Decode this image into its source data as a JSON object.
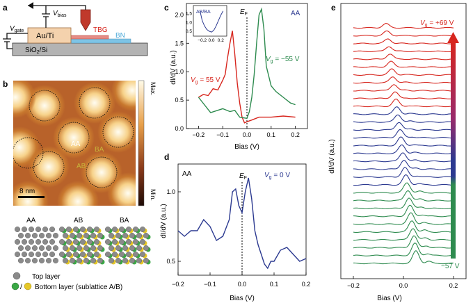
{
  "panels": {
    "a": {
      "letter": "a",
      "v_gate": "V",
      "v_gate_sub": "gate",
      "v_bias": "V",
      "v_bias_sub": "bias",
      "electrode": "Au/Ti",
      "tbg": "TBG",
      "bn": "BN",
      "substrate": "SiO",
      "substrate_sub": "2",
      "substrate_tail": "/Si"
    },
    "b": {
      "letter": "b",
      "colorbar_max": "Max.",
      "colorbar_min": "Min.",
      "scale": "8 nm",
      "label_aa": "AA",
      "label_ab": "AB",
      "label_ba": "BA",
      "models": [
        "AA",
        "AB",
        "BA"
      ],
      "legend_top": "Top layer",
      "legend_bottom": "Bottom layer (sublattice A/B)",
      "legend_slash": "/"
    },
    "c": {
      "letter": "c",
      "ylabel": "dI/dV (a.u.)",
      "xlabel": "Bias (V)",
      "ef": "E",
      "ef_sub": "F",
      "tag": "AA",
      "vg_pos": "V",
      "vg_pos_sub": "g",
      "vg_pos_val": " = 55 V",
      "vg_neg": "V",
      "vg_neg_sub": "g",
      "vg_neg_val": " = −55 V",
      "xticks": [
        "−0.2",
        "−0.1",
        "0.0",
        "0.1",
        "0.2"
      ],
      "yticks": [
        "0.0",
        "0.5",
        "1.0",
        "1.5",
        "2.0"
      ],
      "inset_tag": "AB/BA",
      "inset_xticks": [
        "−0.2",
        "0.0",
        "0.2"
      ],
      "inset_yticks": [
        "1.5",
        "1.0",
        "0.5"
      ]
    },
    "d": {
      "letter": "d",
      "ylabel": "dI/dV (a.u.)",
      "xlabel": "Bias (V)",
      "ef": "E",
      "ef_sub": "F",
      "tag": "AA",
      "vg": "V",
      "vg_sub": "g",
      "vg_val": " = 0 V",
      "xticks": [
        "−0.2",
        "−0.1",
        "0.0",
        "0.1",
        "0.2"
      ],
      "yticks": [
        "0.5",
        "1.0"
      ]
    },
    "e": {
      "letter": "e",
      "ylabel": "dI/dV (a.u.)",
      "xlabel": "Bias (V)",
      "vg_top": "V",
      "vg_top_sub": "g",
      "vg_top_val": " = +69 V",
      "vg_bottom": "−57 V",
      "xticks": [
        "−0.2",
        "0.0",
        "0.2"
      ]
    }
  },
  "colors": {
    "red": "#d7261e",
    "green": "#2e8b4f",
    "blue": "#2b3990",
    "bn": "#7ec4e6",
    "label_aa": "#ffffff",
    "label_ab": "#c8b53a"
  },
  "chart_data": [
    {
      "id": "c",
      "type": "line",
      "xlabel": "Bias (V)",
      "ylabel": "dI/dV (a.u.)",
      "xlim": [
        -0.25,
        0.25
      ],
      "ylim": [
        0,
        2.2
      ],
      "series": [
        {
          "name": "V_g = 55 V",
          "color": "red",
          "x": [
            -0.2,
            -0.18,
            -0.16,
            -0.14,
            -0.12,
            -0.1,
            -0.09,
            -0.08,
            -0.07,
            -0.06,
            -0.05,
            -0.04,
            -0.03,
            -0.02,
            -0.01,
            0.0,
            0.02,
            0.05,
            0.1,
            0.15,
            0.2
          ],
          "y": [
            0.55,
            0.6,
            0.58,
            0.7,
            0.68,
            0.85,
            0.95,
            1.25,
            1.5,
            1.72,
            1.3,
            0.8,
            0.45,
            0.2,
            0.1,
            0.12,
            0.15,
            0.2,
            0.2,
            0.22,
            0.2
          ]
        },
        {
          "name": "V_g = −55 V",
          "color": "green",
          "x": [
            -0.2,
            -0.15,
            -0.1,
            -0.07,
            -0.05,
            -0.03,
            0.0,
            0.01,
            0.02,
            0.03,
            0.04,
            0.05,
            0.06,
            0.07,
            0.08,
            0.1,
            0.12,
            0.15,
            0.18,
            0.2
          ],
          "y": [
            0.55,
            0.28,
            0.35,
            0.3,
            0.32,
            0.2,
            0.18,
            0.3,
            0.55,
            0.95,
            1.5,
            2.0,
            2.1,
            1.75,
            1.1,
            0.75,
            0.65,
            0.55,
            0.45,
            0.42
          ]
        }
      ]
    },
    {
      "id": "c_inset",
      "type": "line",
      "xlim": [
        -0.3,
        0.3
      ],
      "ylim": [
        0.3,
        1.8
      ],
      "series": [
        {
          "color": "blue",
          "x": [
            -0.25,
            -0.2,
            -0.15,
            -0.1,
            -0.05,
            0.0,
            0.05,
            0.1,
            0.15,
            0.2,
            0.25
          ],
          "y": [
            1.7,
            1.1,
            0.8,
            0.6,
            0.5,
            0.45,
            0.55,
            0.8,
            1.1,
            1.4,
            1.65
          ]
        }
      ]
    },
    {
      "id": "d",
      "type": "line",
      "xlabel": "Bias (V)",
      "ylabel": "dI/dV (a.u.)",
      "xlim": [
        -0.2,
        0.2
      ],
      "ylim": [
        0.4,
        1.2
      ],
      "series": [
        {
          "name": "V_g = 0 V",
          "color": "blue",
          "x": [
            -0.2,
            -0.18,
            -0.16,
            -0.14,
            -0.12,
            -0.1,
            -0.08,
            -0.06,
            -0.04,
            -0.03,
            -0.02,
            -0.01,
            0.0,
            0.01,
            0.02,
            0.03,
            0.04,
            0.05,
            0.06,
            0.07,
            0.08,
            0.09,
            0.1,
            0.12,
            0.14,
            0.16,
            0.18,
            0.2
          ],
          "y": [
            0.72,
            0.68,
            0.72,
            0.72,
            0.8,
            0.75,
            0.65,
            0.68,
            0.8,
            1.0,
            1.02,
            0.9,
            0.85,
            1.0,
            1.1,
            0.95,
            0.72,
            0.62,
            0.55,
            0.48,
            0.45,
            0.5,
            0.5,
            0.58,
            0.6,
            0.55,
            0.5,
            0.52
          ]
        }
      ]
    },
    {
      "id": "e",
      "type": "line",
      "xlabel": "Bias (V)",
      "xlim": [
        -0.25,
        0.25
      ],
      "gate_range_v": [
        -57,
        69
      ],
      "traces_red": 11,
      "traces_blue": 10,
      "traces_green": 10
    }
  ]
}
